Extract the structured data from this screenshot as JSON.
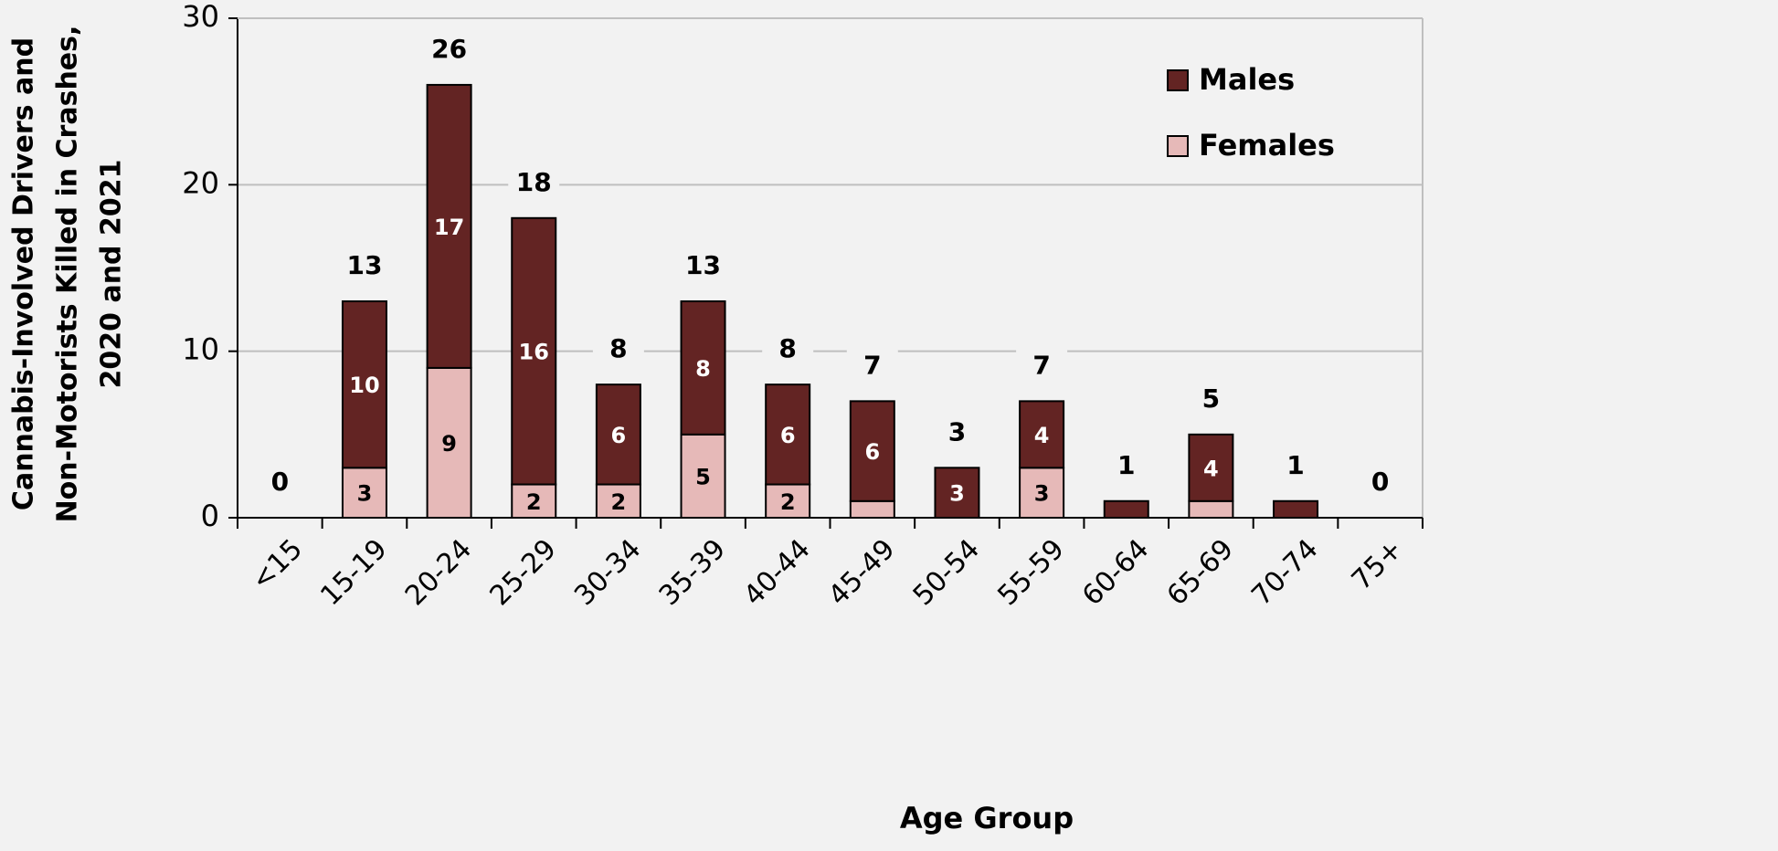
{
  "chart_data": {
    "type": "stacked_bar",
    "xlabel": "Age Group",
    "ylabel": [
      "Cannabis-Involved Drivers and",
      "Non-Motorists Killed in Crashes,",
      "2020 and 2021"
    ],
    "categories": [
      "<15",
      "15-19",
      "20-24",
      "25-29",
      "30-34",
      "35-39",
      "40-44",
      "45-49",
      "50-54",
      "55-59",
      "60-64",
      "65-69",
      "70-74",
      "75+"
    ],
    "series": [
      {
        "name": "Females",
        "color": "#e6b9b8",
        "values": [
          0,
          3,
          9,
          2,
          2,
          5,
          2,
          1,
          0,
          3,
          0,
          1,
          0,
          0
        ],
        "value_labels": [
          null,
          "3",
          "9",
          "2",
          "2",
          "5",
          "2",
          null,
          null,
          "3",
          null,
          null,
          null,
          null
        ]
      },
      {
        "name": "Males",
        "color": "#632423",
        "values": [
          0,
          10,
          17,
          16,
          6,
          8,
          6,
          6,
          3,
          4,
          1,
          4,
          1,
          0
        ],
        "value_labels": [
          null,
          "10",
          "17",
          "16",
          "6",
          "8",
          "6",
          "6",
          "3",
          "4",
          null,
          "4",
          null,
          null
        ]
      }
    ],
    "totals": [
      "0",
      "13",
      "26",
      "18",
      "8",
      "13",
      "8",
      "7",
      "3",
      "7",
      "1",
      "5",
      "1",
      "0"
    ],
    "ylim": [
      0,
      30
    ],
    "yticks": [
      0,
      10,
      20,
      30
    ],
    "grid": true,
    "legend": "upper right"
  }
}
